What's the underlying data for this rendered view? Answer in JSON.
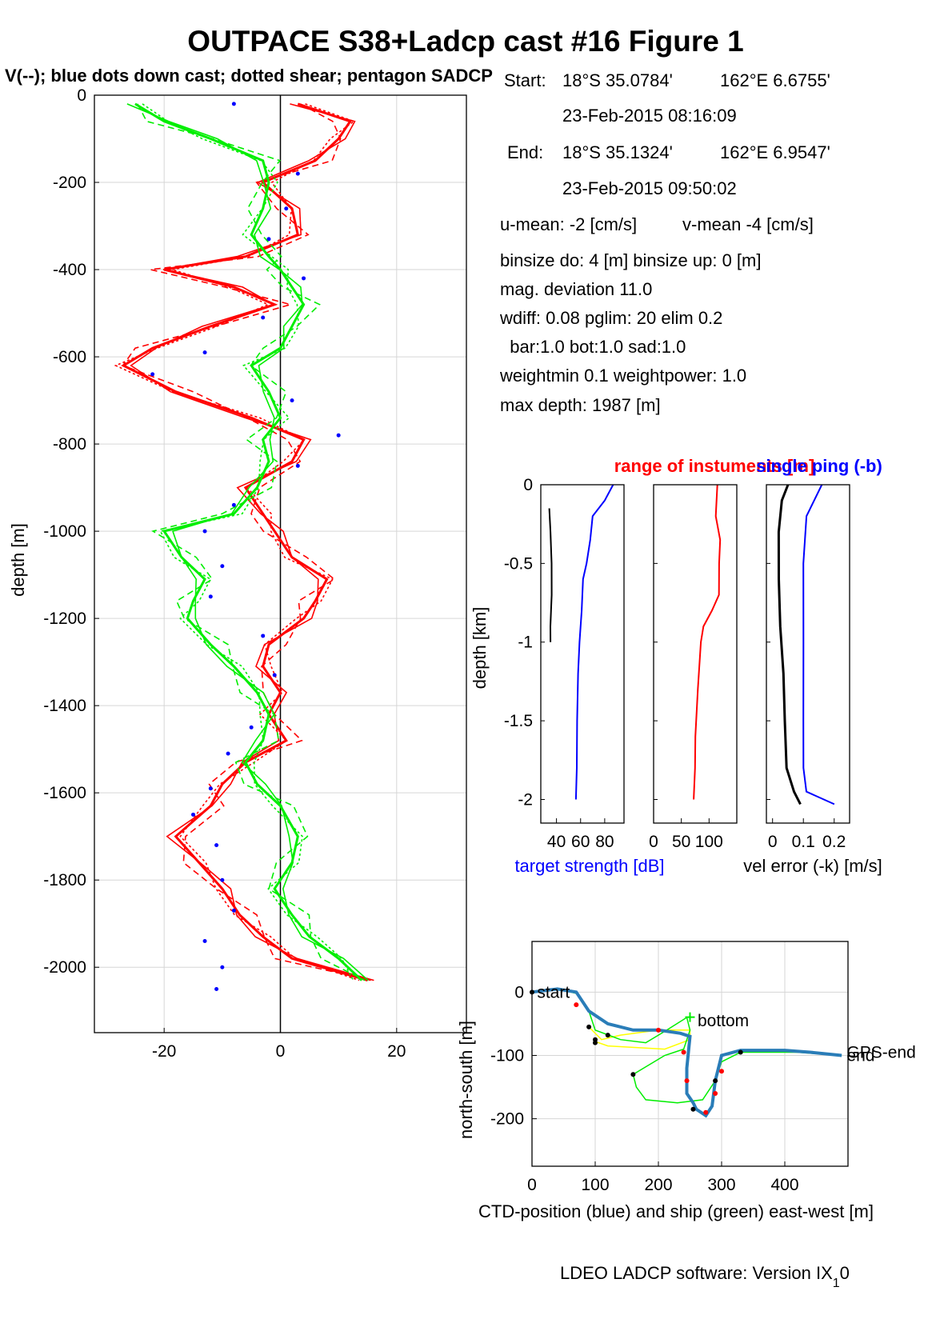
{
  "figure": {
    "title": "OUTPACE S38+Ladcp cast #16  Figure 1",
    "subtitle": "V(--); blue dots down cast; dotted shear; pentagon SADCP",
    "footer": "LDEO LADCP software: Version IX",
    "footer_sub": "1",
    "footer_tail": "0"
  },
  "cast_info": {
    "start_label": "Start:",
    "start_lat": "18°S 35.0784'",
    "start_lon": "162°E  6.6755'",
    "start_time": "23-Feb-2015 08:16:09",
    "end_label": "End:",
    "end_lat": "18°S 35.1324'",
    "end_lon": "162°E  6.9547'",
    "end_time": "23-Feb-2015 09:50:02",
    "u_mean": "u-mean:  -2 [cm/s]",
    "v_mean": "v-mean  -4 [cm/s]",
    "binsize": "binsize do: 4 [m]  binsize up:  0 [m]",
    "mag_dev": "mag. deviation 11.0",
    "wdiff": "wdiff: 0.08  pglim: 20  elim 0.2",
    "bar": "  bar:1.0 bot:1.0 sad:1.0",
    "weight": "weightmin 0.1  weightpower: 1.0",
    "max_depth": "max depth: 1987 [m]"
  },
  "colors": {
    "red": "#ff0000",
    "green": "#00ee00",
    "blue": "#0000ff",
    "black": "#000000",
    "yellow": "#ffff00",
    "ctd": "#2a7db8",
    "grid": "#d6d6d6"
  },
  "chart_data": [
    {
      "type": "line",
      "name": "velocity profile",
      "ylabel": "depth [m]",
      "xlabel": "",
      "xlim": [
        -32,
        32
      ],
      "ylim": [
        -2150,
        0
      ],
      "xticks": [
        "-20",
        "0",
        "20"
      ],
      "yticks": [
        "0",
        "-200",
        "-400",
        "-600",
        "-800",
        "-1000",
        "-1200",
        "-1400",
        "-1600",
        "-1800",
        "-2000"
      ],
      "xtick_values": [
        -20,
        0,
        20
      ],
      "ytick_values": [
        0,
        -200,
        -400,
        -600,
        -800,
        -1000,
        -1200,
        -1400,
        -1600,
        -1800,
        -2000
      ],
      "series": [
        {
          "color": "#ff0000",
          "depth": [
            -20,
            -60,
            -100,
            -150,
            -200,
            -260,
            -320,
            -370,
            -400,
            -440,
            -480,
            -530,
            -580,
            -620,
            -680,
            -740,
            -790,
            -840,
            -900,
            -960,
            -1000,
            -1060,
            -1110,
            -1160,
            -1200,
            -1260,
            -1310,
            -1370,
            -1420,
            -1480,
            -1530,
            -1580,
            -1630,
            -1700,
            -1760,
            -1820,
            -1880,
            -1930,
            -1980,
            -2030
          ],
          "values": [
            3,
            12,
            10,
            6,
            -3,
            2,
            3,
            -6,
            -20,
            -8,
            -1,
            -12,
            -22,
            -27,
            -18,
            -5,
            4,
            2,
            -6,
            -3,
            -1,
            2,
            8,
            6,
            4,
            -2,
            -3,
            0,
            -2,
            1,
            -6,
            -10,
            -12,
            -18,
            -14,
            -10,
            -7,
            -3,
            2,
            15
          ]
        },
        {
          "color": "#00ee00",
          "depth": [
            -20,
            -60,
            -100,
            -150,
            -200,
            -260,
            -320,
            -370,
            -400,
            -440,
            -480,
            -530,
            -580,
            -620,
            -680,
            -740,
            -790,
            -840,
            -900,
            -960,
            -1000,
            -1060,
            -1110,
            -1160,
            -1200,
            -1260,
            -1310,
            -1370,
            -1420,
            -1480,
            -1530,
            -1580,
            -1630,
            -1700,
            -1760,
            -1820,
            -1880,
            -1930,
            -1980,
            -2030
          ],
          "values": [
            -25,
            -20,
            -12,
            -3,
            -2,
            -3,
            -5,
            -2,
            0,
            2,
            4,
            2,
            0,
            -5,
            -2,
            0,
            -3,
            -2,
            -4,
            -8,
            -20,
            -17,
            -13,
            -15,
            -16,
            -12,
            -8,
            -4,
            -2,
            -3,
            -6,
            -4,
            0,
            3,
            2,
            -1,
            2,
            5,
            10,
            14
          ]
        }
      ],
      "blue_dots_depth": [
        -20,
        -180,
        -260,
        -330,
        -420,
        -510,
        -590,
        -640,
        -700,
        -780,
        -850,
        -940,
        -1000,
        -1080,
        -1150,
        -1240,
        -1330,
        -1450,
        -1510,
        -1590,
        -1650,
        -1720,
        -1800,
        -1870,
        -1940,
        -2000,
        -2050
      ],
      "blue_dots_x": [
        -8,
        3,
        1,
        -2,
        4,
        -3,
        -13,
        -22,
        2,
        10,
        3,
        -8,
        -13,
        -10,
        -12,
        -3,
        -1,
        -5,
        -9,
        -12,
        -15,
        -11,
        -10,
        -8,
        -13,
        -10,
        -11
      ]
    },
    {
      "type": "line",
      "name": "target strength",
      "ylabel": "depth [km]",
      "xlim": [
        27,
        96
      ],
      "ylim": [
        -2.15,
        0
      ],
      "xticks": [
        "40",
        "60",
        "80"
      ],
      "xtick_values": [
        40,
        60,
        80
      ],
      "yticks": [
        "0",
        "-0.5",
        "-1",
        "-1.5",
        "-2"
      ],
      "ytick_values": [
        0,
        -0.5,
        -1,
        -1.5,
        -2
      ],
      "series": [
        {
          "color": "#0000ff",
          "depth": [
            0,
            -0.1,
            -0.2,
            -0.35,
            -0.5,
            -0.6,
            -0.8,
            -1.0,
            -1.2,
            -1.5,
            -1.8,
            -2.0
          ],
          "values": [
            87,
            80,
            70,
            68,
            65,
            62,
            61,
            59,
            58,
            57,
            57,
            56
          ]
        },
        {
          "color": "#000000",
          "depth": [
            -0.15,
            -0.3,
            -0.5,
            -0.7,
            -0.9,
            -1.0
          ],
          "values": [
            34,
            35,
            36,
            36,
            35,
            35
          ]
        }
      ]
    },
    {
      "type": "line",
      "name": "range of instruments",
      "title": "range of instuments [m]",
      "xlim": [
        0,
        150
      ],
      "ylim": [
        -2.15,
        0
      ],
      "xticks": [
        "0",
        "50",
        "100"
      ],
      "xtick_values": [
        0,
        50,
        100
      ],
      "series": [
        {
          "color": "#ff0000",
          "depth": [
            0,
            -0.2,
            -0.35,
            -0.5,
            -0.7,
            -0.8,
            -0.9,
            -1.0,
            -1.3,
            -1.6,
            -1.8,
            -2.0
          ],
          "values": [
            115,
            112,
            120,
            118,
            118,
            105,
            90,
            85,
            80,
            75,
            75,
            72
          ]
        }
      ]
    },
    {
      "type": "line",
      "name": "single ping vel error",
      "title": "single ping (-b)",
      "xlabel": "vel error (-k) [m/s]",
      "xlim": [
        -0.02,
        0.25
      ],
      "ylim": [
        -2.15,
        0
      ],
      "xticks": [
        "0",
        "0.1",
        "0.2"
      ],
      "xtick_values": [
        0,
        0.1,
        0.2
      ],
      "series": [
        {
          "color": "#000000",
          "depth": [
            0,
            -0.1,
            -0.3,
            -0.6,
            -0.9,
            -1.2,
            -1.5,
            -1.8,
            -1.95,
            -2.03
          ],
          "values": [
            0.05,
            0.03,
            0.02,
            0.02,
            0.025,
            0.035,
            0.04,
            0.045,
            0.07,
            0.09
          ]
        },
        {
          "color": "#0000ff",
          "depth": [
            0,
            -0.2,
            -0.5,
            -1.0,
            -1.5,
            -1.8,
            -1.95,
            -2.03
          ],
          "values": [
            0.16,
            0.11,
            0.1,
            0.1,
            0.1,
            0.1,
            0.11,
            0.2
          ]
        }
      ]
    },
    {
      "type": "line",
      "name": "position",
      "xlabel": "CTD-position (blue) and ship (green) east-west [m]",
      "ylabel": "north-south [m]",
      "xlim": [
        0,
        500
      ],
      "ylim": [
        -275,
        80
      ],
      "xticks": [
        "0",
        "100",
        "200",
        "300",
        "400"
      ],
      "xtick_values": [
        0,
        100,
        200,
        300,
        400
      ],
      "yticks": [
        "0",
        "-100",
        "-200"
      ],
      "ytick_values": [
        0,
        -100,
        -200
      ],
      "annotations": [
        "start",
        "bottom",
        "GPS-end",
        "end"
      ],
      "ctd_x": [
        0,
        40,
        70,
        90,
        120,
        160,
        200,
        235,
        250,
        245,
        245,
        255,
        260,
        275,
        285,
        290,
        300,
        330,
        400,
        440,
        490
      ],
      "ctd_y": [
        0,
        5,
        0,
        -30,
        -50,
        -60,
        -60,
        -65,
        -70,
        -120,
        -160,
        -175,
        -185,
        -195,
        -180,
        -140,
        -100,
        -92,
        -92,
        -95,
        -100
      ],
      "ship_x": [
        0,
        40,
        70,
        90,
        100,
        140,
        180,
        210,
        245,
        250,
        240,
        210,
        160,
        165,
        180,
        230,
        270,
        290,
        300,
        330,
        420,
        490
      ],
      "ship_y": [
        0,
        5,
        -2,
        -30,
        -60,
        -75,
        -80,
        -62,
        -40,
        -60,
        -90,
        -100,
        -130,
        -150,
        -170,
        -175,
        -170,
        -140,
        -110,
        -95,
        -95,
        -100
      ],
      "yellow_x": [
        90,
        110,
        140,
        200,
        250,
        250,
        210,
        120,
        100
      ],
      "yellow_y": [
        -55,
        -75,
        -68,
        -60,
        -60,
        -75,
        -90,
        -85,
        -78
      ]
    }
  ],
  "labels": {
    "vel_ticks_label": "",
    "ts_xlabel": "target strength [dB]"
  }
}
